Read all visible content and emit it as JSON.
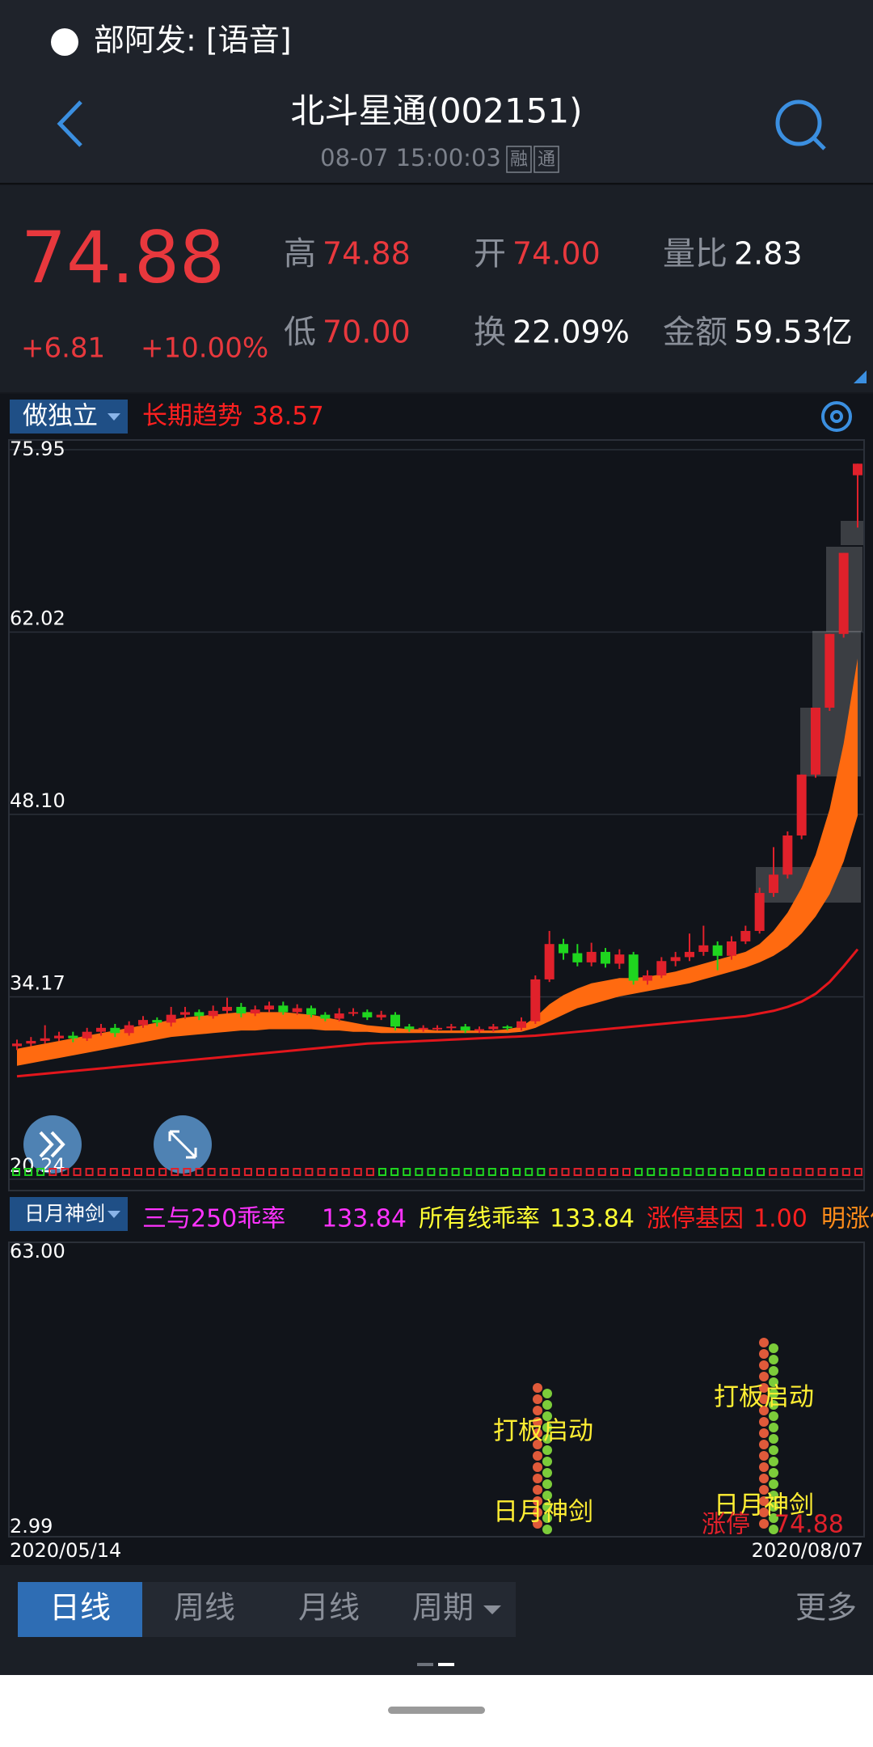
{
  "status_bar": {
    "notification": "部阿发: [语音]"
  },
  "header": {
    "title": "北斗星通(002151)",
    "time": "08-07 15:00:03",
    "badges": [
      "融",
      "通"
    ]
  },
  "quote": {
    "price": "74.88",
    "change": "+6.81",
    "change_pct": "+10.00%",
    "fields": [
      {
        "label": "高",
        "value": "74.88",
        "color": "#e8383d"
      },
      {
        "label": "开",
        "value": "74.00",
        "color": "#e8383d"
      },
      {
        "label": "量比",
        "value": "2.83",
        "color": "#ffffff"
      },
      {
        "label": "低",
        "value": "70.00",
        "color": "#e8383d"
      },
      {
        "label": "换",
        "value": "22.09%",
        "color": "#ffffff"
      },
      {
        "label": "金额",
        "value": "59.53亿",
        "color": "#ffffff"
      }
    ]
  },
  "chart_data": {
    "type": "candlestick",
    "indicator": "做独立",
    "trend_label": "长期趋势",
    "trend_value": 38.57,
    "ylim": [
      20.24,
      75.95
    ],
    "yticks": [
      75.95,
      62.02,
      {
        "value": 48.1,
        "label": "48.10"
      },
      34.17,
      20.24
    ],
    "grid": true,
    "up_color": "#e0212b",
    "down_color": "#1fd51f",
    "ma_color": "#e3161c",
    "band_color": "#ff6a10",
    "categories": [
      "2020/05/14",
      null,
      null,
      null,
      null,
      null,
      null,
      null,
      null,
      null,
      null,
      null,
      null,
      null,
      null,
      null,
      null,
      null,
      null,
      null,
      null,
      null,
      null,
      null,
      null,
      null,
      null,
      null,
      null,
      null,
      null,
      null,
      null,
      null,
      null,
      null,
      null,
      null,
      null,
      null,
      null,
      null,
      null,
      null,
      null,
      null,
      null,
      null,
      null,
      null,
      null,
      null,
      null,
      null,
      null,
      null,
      null,
      null,
      null,
      null,
      "2020/08/07"
    ],
    "open": [
      30.4,
      30.6,
      30.8,
      31.0,
      31.2,
      31.0,
      31.5,
      31.8,
      31.4,
      32.0,
      32.4,
      32.2,
      32.8,
      33.0,
      32.7,
      33.1,
      33.4,
      32.9,
      33.2,
      33.5,
      33.0,
      33.3,
      32.8,
      32.5,
      32.9,
      33.0,
      32.6,
      32.8,
      31.9,
      31.7,
      31.8,
      31.8,
      31.9,
      31.6,
      31.7,
      31.9,
      31.8,
      32.3,
      35.5,
      38.2,
      37.5,
      36.8,
      37.6,
      36.7,
      37.4,
      35.4,
      35.8,
      36.9,
      37.2,
      37.6,
      38.1,
      37.3,
      38.4,
      39.2,
      42.1,
      43.5,
      46.49,
      51.14,
      56.25,
      61.88,
      74.0
    ],
    "high": [
      30.9,
      31.1,
      32.0,
      31.5,
      31.5,
      31.8,
      32.1,
      32.1,
      32.3,
      32.7,
      32.6,
      33.4,
      33.4,
      33.2,
      33.5,
      34.1,
      33.7,
      33.5,
      33.8,
      33.8,
      33.6,
      33.5,
      33.0,
      33.3,
      33.3,
      33.2,
      33.1,
      33.0,
      32.1,
      32.0,
      32.0,
      32.1,
      32.1,
      31.9,
      32.1,
      32.0,
      32.6,
      35.8,
      39.2,
      38.6,
      38.2,
      38.3,
      37.9,
      37.8,
      37.6,
      36.2,
      37.2,
      37.6,
      39.0,
      39.6,
      38.4,
      38.8,
      39.6,
      42.5,
      45.6,
      46.8,
      51.14,
      56.25,
      61.88,
      68.07,
      74.88
    ],
    "low": [
      30.1,
      30.4,
      30.6,
      30.8,
      30.7,
      30.8,
      31.2,
      31.1,
      31.2,
      31.8,
      31.9,
      31.9,
      32.5,
      32.4,
      32.5,
      32.9,
      32.6,
      32.7,
      33.0,
      32.8,
      32.8,
      32.6,
      32.3,
      32.3,
      32.7,
      32.4,
      32.4,
      31.6,
      31.5,
      31.5,
      31.6,
      31.6,
      31.4,
      31.4,
      31.5,
      31.6,
      31.6,
      32.1,
      35.3,
      37.0,
      36.5,
      36.5,
      36.4,
      36.3,
      35.1,
      35.1,
      35.6,
      36.5,
      36.9,
      37.3,
      36.2,
      37.0,
      38.2,
      39.0,
      41.8,
      43.2,
      46.2,
      50.9,
      56.0,
      61.6,
      70.0
    ],
    "close": [
      30.6,
      30.8,
      31.0,
      31.2,
      31.0,
      31.5,
      31.8,
      31.4,
      32.0,
      32.4,
      32.2,
      32.8,
      33.0,
      32.7,
      33.1,
      33.4,
      32.9,
      33.2,
      33.5,
      33.0,
      33.3,
      32.8,
      32.5,
      32.9,
      33.0,
      32.6,
      32.8,
      31.9,
      31.7,
      31.8,
      31.8,
      31.9,
      31.6,
      31.7,
      31.9,
      31.8,
      32.3,
      35.5,
      38.2,
      37.5,
      36.8,
      37.6,
      36.7,
      37.4,
      35.4,
      35.8,
      36.9,
      37.2,
      37.6,
      38.1,
      37.3,
      38.4,
      39.2,
      42.1,
      43.5,
      46.49,
      51.14,
      56.25,
      61.88,
      68.07,
      74.88
    ],
    "ma": [
      28.1,
      28.2,
      28.3,
      28.4,
      28.5,
      28.6,
      28.7,
      28.8,
      28.9,
      29.0,
      29.1,
      29.2,
      29.3,
      29.4,
      29.5,
      29.6,
      29.7,
      29.8,
      29.9,
      30.0,
      30.1,
      30.2,
      30.3,
      30.4,
      30.5,
      30.6,
      30.65,
      30.7,
      30.75,
      30.8,
      30.85,
      30.9,
      30.95,
      31.0,
      31.05,
      31.1,
      31.15,
      31.2,
      31.3,
      31.4,
      31.5,
      31.6,
      31.7,
      31.8,
      31.9,
      32.0,
      32.1,
      32.2,
      32.3,
      32.4,
      32.5,
      32.6,
      32.7,
      32.9,
      33.1,
      33.4,
      33.8,
      34.4,
      35.3,
      36.5,
      37.8
    ],
    "band_upper": [
      30.2,
      30.4,
      30.6,
      30.8,
      31.0,
      31.2,
      31.4,
      31.6,
      31.8,
      32.0,
      32.2,
      32.4,
      32.6,
      32.7,
      32.8,
      32.9,
      33.0,
      33.0,
      33.0,
      33.0,
      32.9,
      32.8,
      32.6,
      32.4,
      32.2,
      32.0,
      31.9,
      31.8,
      31.7,
      31.7,
      31.6,
      31.6,
      31.6,
      31.6,
      31.6,
      31.7,
      31.9,
      32.6,
      33.6,
      34.3,
      34.8,
      35.2,
      35.4,
      35.6,
      35.6,
      35.7,
      35.9,
      36.1,
      36.4,
      36.7,
      37.0,
      37.3,
      37.6,
      38.2,
      39.2,
      40.6,
      42.5,
      45.0,
      48.5,
      53.5,
      60.0
    ],
    "band_lower": [
      28.9,
      29.1,
      29.3,
      29.5,
      29.7,
      29.9,
      30.1,
      30.3,
      30.5,
      30.7,
      30.9,
      31.1,
      31.2,
      31.3,
      31.4,
      31.5,
      31.6,
      31.6,
      31.7,
      31.7,
      31.7,
      31.7,
      31.6,
      31.6,
      31.5,
      31.5,
      31.4,
      31.4,
      31.4,
      31.4,
      31.4,
      31.4,
      31.4,
      31.4,
      31.4,
      31.4,
      31.5,
      31.8,
      32.3,
      32.8,
      33.3,
      33.6,
      33.9,
      34.2,
      34.4,
      34.6,
      34.8,
      35.0,
      35.2,
      35.5,
      35.8,
      36.1,
      36.4,
      36.8,
      37.3,
      38.0,
      39.0,
      40.3,
      42.0,
      44.5,
      48.0
    ]
  },
  "indicator_panel": {
    "name": "日月神剑",
    "legend": [
      {
        "label": "三与250乖率",
        "value": 133.84,
        "color": "#ff33ff"
      },
      {
        "label": "所有线乖率",
        "value": 133.84,
        "color": "#ffff33"
      },
      {
        "label": "涨停基因",
        "value": "1.00",
        "color": "#ff2020"
      },
      {
        "label": "明涨停价",
        "color": "#ff8c1a"
      }
    ],
    "ylim": [
      2.99,
      63
    ],
    "yticks": [
      {
        "value": 63,
        "label": "63.00"
      },
      2.99
    ],
    "annotations": [
      "打板启动",
      "日月神剑",
      "打板启动",
      "日月神剑"
    ],
    "limit_up": {
      "label": "涨停",
      "value": 74.88
    }
  },
  "tabs": {
    "items": [
      "日线",
      "周线",
      "月线",
      "周期"
    ],
    "more": "更多"
  }
}
